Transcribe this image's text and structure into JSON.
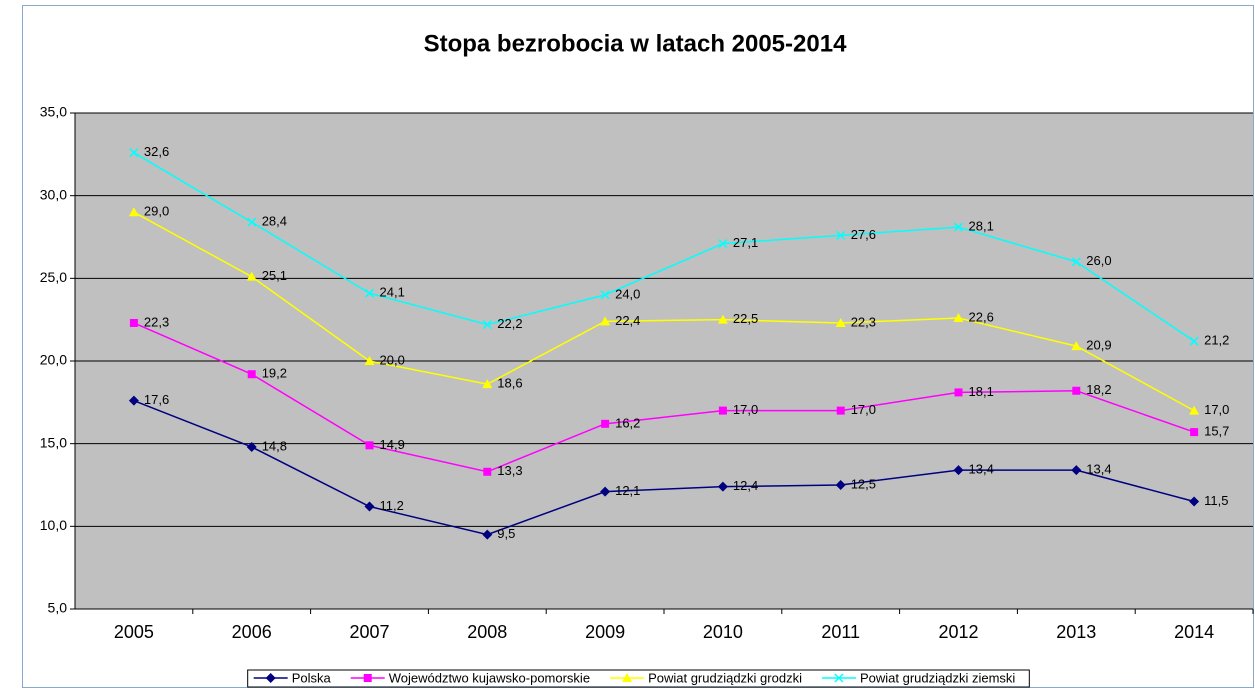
{
  "chart_data": {
    "type": "line",
    "title": "Stopa bezrobocia w latach 2005-2014",
    "categories": [
      "2005",
      "2006",
      "2007",
      "2008",
      "2009",
      "2010",
      "2011",
      "2012",
      "2013",
      "2014"
    ],
    "ylim": [
      5,
      35
    ],
    "yticks": [
      {
        "value": 5,
        "label": "5,0"
      },
      {
        "value": 10,
        "label": "10,0"
      },
      {
        "value": 15,
        "label": "15,0"
      },
      {
        "value": 20,
        "label": "20,0"
      },
      {
        "value": 25,
        "label": "25,0"
      },
      {
        "value": 30,
        "label": "30,0"
      },
      {
        "value": 35,
        "label": "35,0"
      }
    ],
    "grid": true,
    "legend": "bottom",
    "series": [
      {
        "name": "Polska",
        "color": "#000080",
        "marker": "diamond",
        "values": [
          17.6,
          14.8,
          11.2,
          9.5,
          12.1,
          12.4,
          12.5,
          13.4,
          13.4,
          11.5
        ],
        "value_labels": [
          "17,6",
          "14,8",
          "11,2",
          "9,5",
          "12,1",
          "12,4",
          "12,5",
          "13,4",
          "13,4",
          "11,5"
        ]
      },
      {
        "name": "Województwo kujawsko-pomorskie",
        "color": "#ff00ff",
        "marker": "square",
        "values": [
          22.3,
          19.2,
          14.9,
          13.3,
          16.2,
          17.0,
          17.0,
          18.1,
          18.2,
          15.7
        ],
        "value_labels": [
          "22,3",
          "19,2",
          "14,9",
          "13,3",
          "16,2",
          "17,0",
          "17,0",
          "18,1",
          "18,2",
          "15,7"
        ]
      },
      {
        "name": "Powiat grudziądzki grodzki",
        "color": "#ffff00",
        "marker": "triangle",
        "values": [
          29.0,
          25.1,
          20.0,
          18.6,
          22.4,
          22.5,
          22.3,
          22.6,
          20.9,
          17.0
        ],
        "value_labels": [
          "29,0",
          "25,1",
          "20,0",
          "18,6",
          "22,4",
          "22,5",
          "22,3",
          "22,6",
          "20,9",
          "17,0"
        ]
      },
      {
        "name": "Powiat grudziądzki ziemski",
        "color": "#00ffff",
        "marker": "x",
        "values": [
          32.6,
          28.4,
          24.1,
          22.2,
          24.0,
          27.1,
          27.6,
          28.1,
          26.0,
          21.2
        ],
        "value_labels": [
          "32,6",
          "28,4",
          "24,1",
          "22,2",
          "24,0",
          "27,1",
          "27,6",
          "28,1",
          "26,0",
          "21,2"
        ]
      }
    ]
  }
}
